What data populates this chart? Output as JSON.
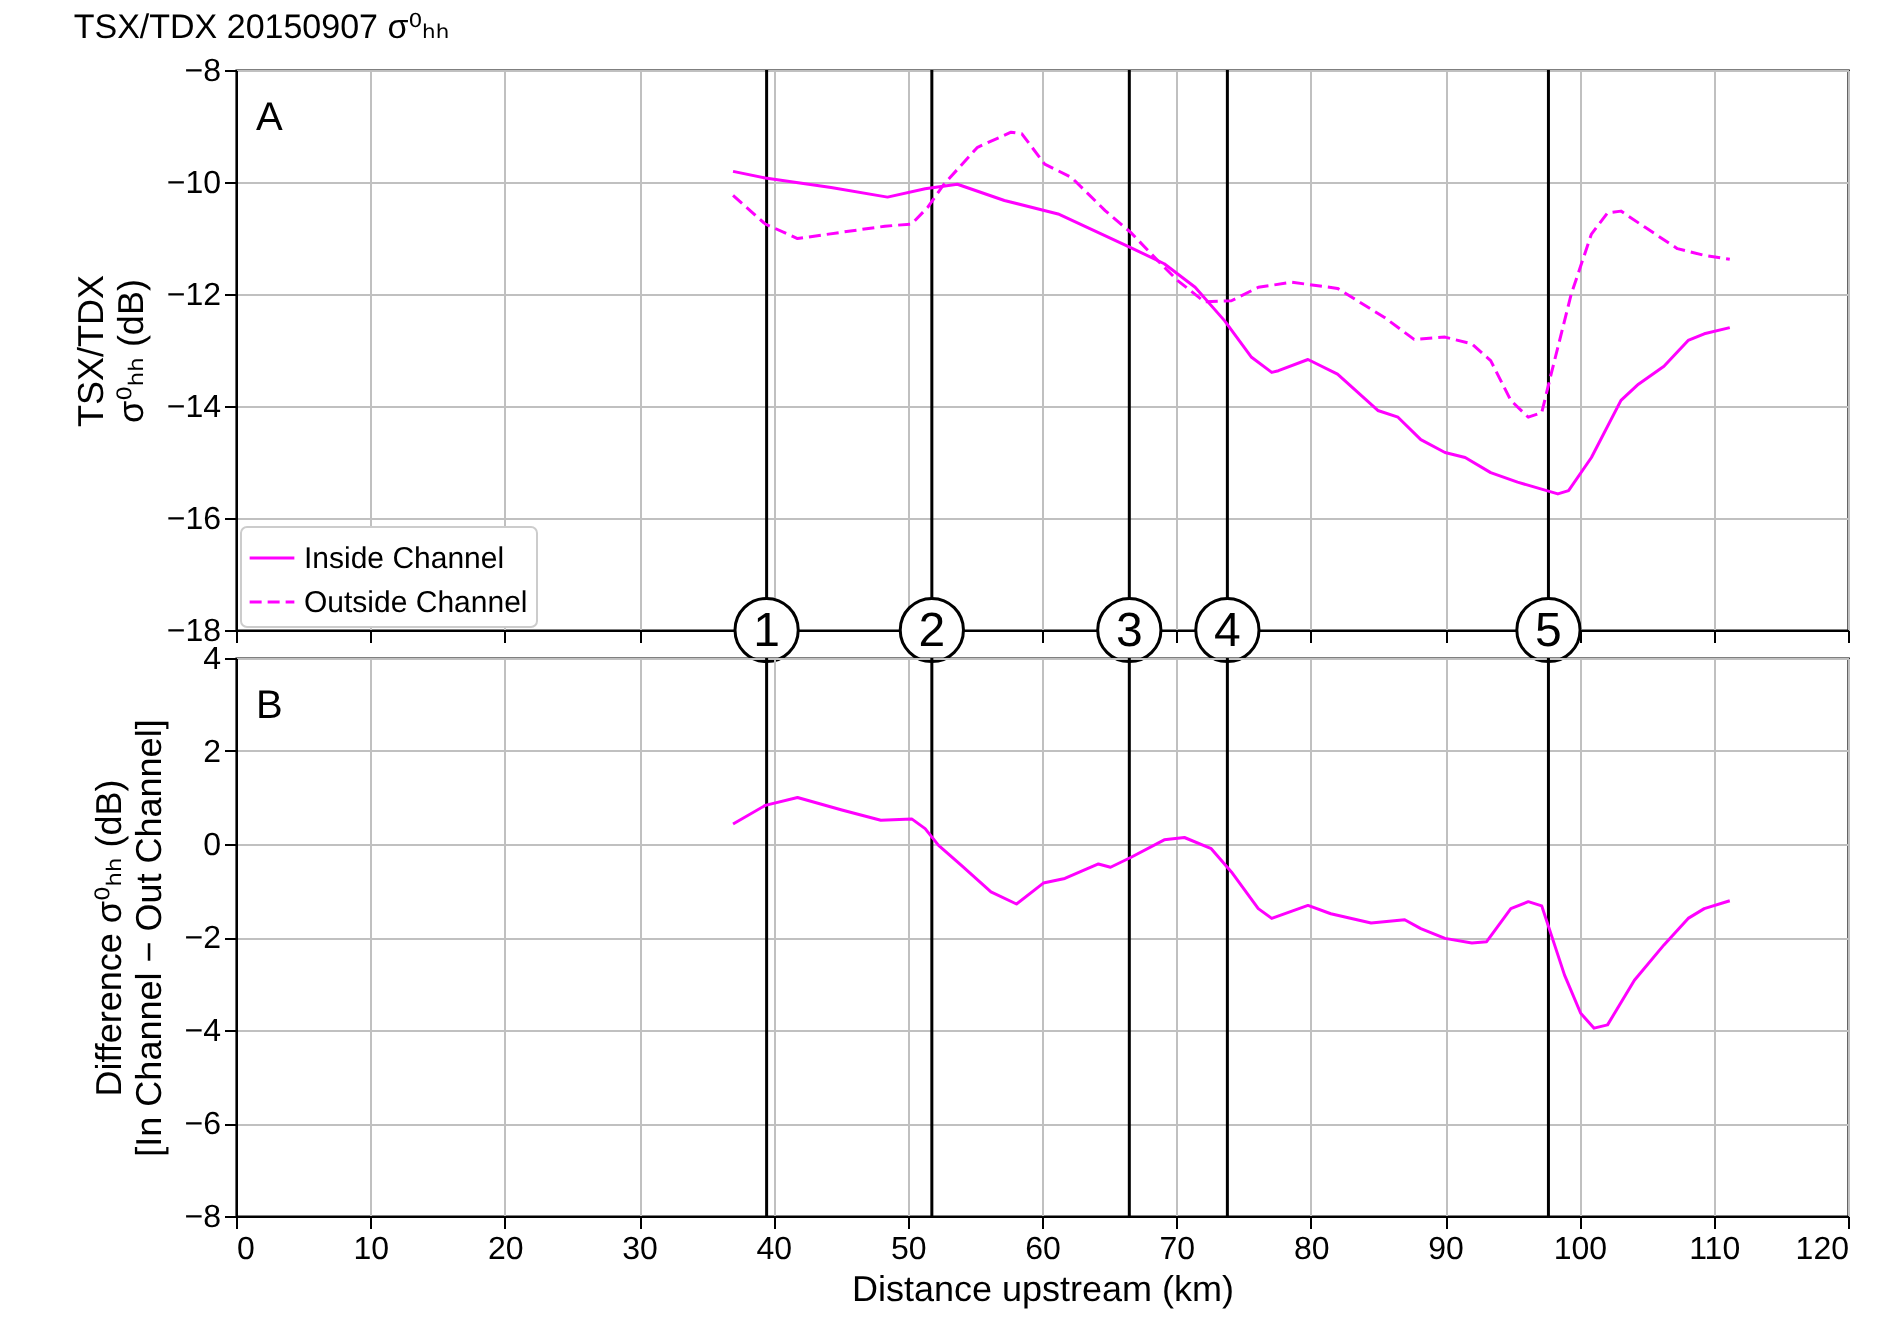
{
  "chart_data": [
    {
      "type": "line",
      "title": "TSX/TDX 20150907 σ⁰ₕₕ",
      "ylabel": "TSX/TDX\nσ⁰ₕₕ (dB)",
      "annotations": [
        "A",
        {
          "text": "1",
          "x": 39.5,
          "y": -18
        },
        {
          "text": "2",
          "x": 51.8,
          "y": -18
        },
        {
          "text": "3",
          "x": 66.5,
          "y": -18
        },
        {
          "text": "4",
          "x": 73.8,
          "y": -18
        },
        {
          "text": "5",
          "x": 97.7,
          "y": -18
        }
      ],
      "xlim": [
        0,
        120
      ],
      "xticks": [
        0,
        10,
        20,
        30,
        40,
        50,
        60,
        70,
        80,
        90,
        100,
        110,
        120
      ],
      "ylim": [
        -18,
        -8
      ],
      "yticks": [
        -18,
        -16,
        -14,
        -12,
        -10,
        -8
      ],
      "grid": true,
      "legend": "bottom left",
      "tick_labels": "y",
      "ref_lines": [
        {
          "axis": "x",
          "value": 39.5
        },
        {
          "axis": "x",
          "value": 51.8
        },
        {
          "axis": "x",
          "value": 66.5
        },
        {
          "axis": "x",
          "value": 73.8
        },
        {
          "axis": "x",
          "value": 97.7
        }
      ],
      "series": [
        {
          "name": "Inside Channel",
          "color": "#ff00ff",
          "line_style": "solid",
          "x": [
            37.0,
            39.4,
            44.3,
            48.5,
            51.3,
            53.7,
            57.2,
            61.2,
            66.6,
            69.1,
            71.4,
            73.6,
            75.6,
            77.1,
            77.6,
            79.8,
            82.0,
            85.0,
            86.5,
            88.2,
            90.0,
            91.5,
            93.4,
            95.4,
            97.7,
            98.4,
            99.2,
            100.9,
            103.1,
            104.4,
            106.3,
            108.1,
            109.3,
            111.2
          ],
          "values": [
            -9.81,
            -9.93,
            -10.1,
            -10.27,
            -10.12,
            -10.04,
            -10.33,
            -10.57,
            -11.17,
            -11.46,
            -11.88,
            -12.48,
            -13.13,
            -13.4,
            -13.37,
            -13.17,
            -13.43,
            -14.08,
            -14.2,
            -14.6,
            -14.83,
            -14.92,
            -15.19,
            -15.36,
            -15.52,
            -15.57,
            -15.51,
            -14.92,
            -13.9,
            -13.61,
            -13.29,
            -12.83,
            -12.71,
            -12.6
          ]
        },
        {
          "name": "Outside Channel",
          "color": "#ff00ff",
          "line_style": "dashed",
          "x": [
            37.0,
            39.4,
            41.8,
            45.3,
            48.3,
            50.3,
            51.5,
            52.7,
            55.2,
            57.7,
            58.5,
            60.2,
            62.2,
            64.7,
            66.6,
            68.6,
            70.1,
            72.1,
            74.1,
            76.1,
            78.6,
            82.0,
            85.5,
            87.7,
            90.0,
            92.0,
            93.4,
            94.9,
            96.2,
            97.2,
            97.9,
            99.4,
            100.9,
            102.1,
            103.1,
            104.9,
            107.3,
            109.3,
            111.2
          ],
          "values": [
            -10.24,
            -10.75,
            -11.01,
            -10.89,
            -10.79,
            -10.75,
            -10.45,
            -10.04,
            -9.38,
            -9.11,
            -9.14,
            -9.68,
            -9.92,
            -10.51,
            -10.9,
            -11.4,
            -11.76,
            -12.14,
            -12.12,
            -11.88,
            -11.79,
            -11.9,
            -12.42,
            -12.81,
            -12.77,
            -12.89,
            -13.19,
            -13.9,
            -14.2,
            -14.12,
            -13.43,
            -12.0,
            -10.93,
            -10.55,
            -10.52,
            -10.81,
            -11.19,
            -11.31,
            -11.38
          ]
        }
      ]
    },
    {
      "type": "line",
      "xlabel": "Distance upstream (km)",
      "ylabel": "Difference σ⁰ₕₕ (dB)\n[In Channel − Out Channel]",
      "annotations": [
        "B"
      ],
      "xlim": [
        0,
        120
      ],
      "xticks": [
        0,
        10,
        20,
        30,
        40,
        50,
        60,
        70,
        80,
        90,
        100,
        110,
        120
      ],
      "ylim": [
        -8,
        4
      ],
      "yticks": [
        -8,
        -6,
        -4,
        -2,
        0,
        2,
        4
      ],
      "grid": true,
      "ref_lines": [
        {
          "axis": "x",
          "value": 39.5
        },
        {
          "axis": "x",
          "value": 51.8
        },
        {
          "axis": "x",
          "value": 66.5
        },
        {
          "axis": "x",
          "value": 73.8
        },
        {
          "axis": "x",
          "value": 97.7
        }
      ],
      "series": [
        {
          "color": "#ff00ff",
          "line_style": "solid",
          "x": [
            37.0,
            39.4,
            41.8,
            45.1,
            48.0,
            50.3,
            51.3,
            52.3,
            54.0,
            56.2,
            58.1,
            60.1,
            61.7,
            64.2,
            65.1,
            66.6,
            69.1,
            70.6,
            72.6,
            74.1,
            76.1,
            77.1,
            79.8,
            81.5,
            84.5,
            87.0,
            88.2,
            90.0,
            92.0,
            93.1,
            94.9,
            96.2,
            97.2,
            98.9,
            100.1,
            101.1,
            102.1,
            104.1,
            106.3,
            108.1,
            109.3,
            111.2
          ],
          "values": [
            0.43,
            0.83,
            1.0,
            0.73,
            0.51,
            0.54,
            0.33,
            -0.03,
            -0.46,
            -1.03,
            -1.29,
            -0.84,
            -0.74,
            -0.43,
            -0.5,
            -0.29,
            0.09,
            0.14,
            -0.1,
            -0.6,
            -1.39,
            -1.6,
            -1.32,
            -1.5,
            -1.7,
            -1.63,
            -1.82,
            -2.03,
            -2.13,
            -2.1,
            -1.39,
            -1.24,
            -1.33,
            -2.82,
            -3.64,
            -3.96,
            -3.89,
            -2.93,
            -2.17,
            -1.6,
            -1.39,
            -1.22
          ]
        }
      ]
    }
  ]
}
